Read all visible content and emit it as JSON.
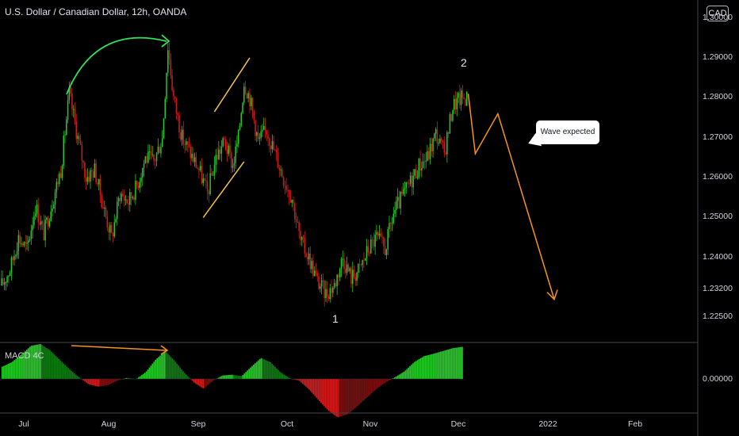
{
  "title": "U.S. Dollar / Canadian Dollar, 12h, OANDA",
  "currency_badge": "CAD",
  "indicator_title": "MACD 4C",
  "callout_text": "Wave expected",
  "wave_labels": [
    "1",
    "2"
  ],
  "colors": {
    "background": "#000000",
    "bull": "#26c928",
    "bear": "#d01c1c",
    "bull_dark": "#0f7a12",
    "bear_dark": "#7a0f0f",
    "projection": "#f7931a",
    "channel": "#f5c542",
    "arc": "#2ee55a",
    "macd_divergence": "#f7931a"
  },
  "chart_data": {
    "type": "candlestick",
    "symbol": "USDCAD",
    "interval": "12h",
    "source": "OANDA",
    "y_axis": {
      "ticks": [
        "1.30000",
        "1.29000",
        "1.28000",
        "1.27000",
        "1.26000",
        "1.25000",
        "1.24000",
        "1.23200",
        "1.22500"
      ],
      "range": [
        1.2195,
        1.3025
      ]
    },
    "x_axis": {
      "ticks": [
        "Jul",
        "Aug",
        "Sep",
        "Oct",
        "Nov",
        "Dec",
        "2022",
        "Feb"
      ]
    },
    "price_path": [
      [
        0,
        1.233
      ],
      [
        6,
        1.237
      ],
      [
        12,
        1.245
      ],
      [
        18,
        1.242
      ],
      [
        24,
        1.253
      ],
      [
        30,
        1.246
      ],
      [
        36,
        1.254
      ],
      [
        42,
        1.262
      ],
      [
        48,
        1.281
      ],
      [
        54,
        1.27
      ],
      [
        60,
        1.26
      ],
      [
        66,
        1.262
      ],
      [
        72,
        1.253
      ],
      [
        78,
        1.245
      ],
      [
        84,
        1.256
      ],
      [
        90,
        1.254
      ],
      [
        96,
        1.258
      ],
      [
        102,
        1.265
      ],
      [
        108,
        1.264
      ],
      [
        114,
        1.27
      ],
      [
        118,
        1.293
      ],
      [
        122,
        1.28
      ],
      [
        128,
        1.27
      ],
      [
        134,
        1.266
      ],
      [
        140,
        1.262
      ],
      [
        146,
        1.256
      ],
      [
        152,
        1.265
      ],
      [
        158,
        1.269
      ],
      [
        164,
        1.263
      ],
      [
        168,
        1.27
      ],
      [
        172,
        1.284
      ],
      [
        176,
        1.28
      ],
      [
        182,
        1.269
      ],
      [
        188,
        1.272
      ],
      [
        194,
        1.266
      ],
      [
        200,
        1.26
      ],
      [
        206,
        1.255
      ],
      [
        212,
        1.244
      ],
      [
        218,
        1.24
      ],
      [
        224,
        1.234
      ],
      [
        230,
        1.231
      ],
      [
        236,
        1.233
      ],
      [
        242,
        1.24
      ],
      [
        248,
        1.235
      ],
      [
        254,
        1.237
      ],
      [
        260,
        1.242
      ],
      [
        266,
        1.245
      ],
      [
        272,
        1.242
      ],
      [
        278,
        1.251
      ],
      [
        284,
        1.255
      ],
      [
        290,
        1.259
      ],
      [
        296,
        1.263
      ],
      [
        302,
        1.265
      ],
      [
        308,
        1.271
      ],
      [
        314,
        1.266
      ],
      [
        320,
        1.278
      ],
      [
        326,
        1.28
      ],
      [
        330,
        1.28
      ]
    ],
    "macd_histogram": {
      "zero_tick": "0.00000",
      "values": [
        0.35,
        0.48,
        0.7,
        0.95,
        1.0,
        0.82,
        0.55,
        0.28,
        0.05,
        -0.15,
        -0.22,
        -0.18,
        -0.05,
        0.03,
        0.0,
        0.2,
        0.55,
        0.8,
        0.52,
        0.18,
        -0.1,
        -0.28,
        -0.05,
        0.1,
        0.12,
        0.08,
        0.35,
        0.6,
        0.48,
        0.2,
        0.02,
        -0.05,
        -0.3,
        -0.6,
        -0.9,
        -1.1,
        -1.02,
        -0.8,
        -0.55,
        -0.3,
        -0.1,
        0.05,
        0.22,
        0.48,
        0.65,
        0.72,
        0.8,
        0.88,
        0.92
      ]
    },
    "annotations": {
      "wave_1": {
        "x": 232,
        "y": 1.225
      },
      "wave_2": {
        "x": 323,
        "y": 1.2935
      },
      "channel": {
        "lower": [
          [
            143,
            1.25
          ],
          [
            172,
            1.264
          ]
        ],
        "upper": [
          [
            151,
            1.2765
          ],
          [
            176,
            1.29
          ]
        ]
      },
      "projection": [
        [
          331,
          1.281
        ],
        [
          336,
          1.266
        ],
        [
          352,
          1.276
        ],
        [
          392,
          1.2295
        ]
      ]
    }
  }
}
